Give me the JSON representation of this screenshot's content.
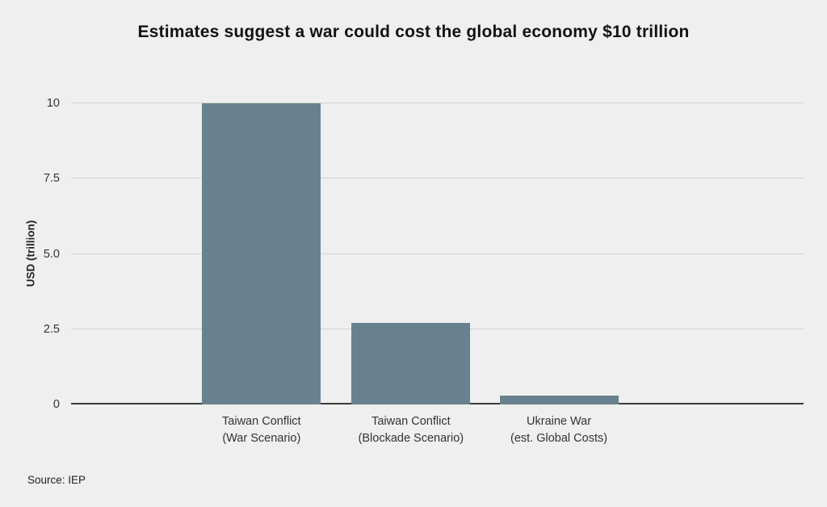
{
  "page": {
    "background": "#efefef"
  },
  "chart_data": {
    "type": "bar",
    "title": "Estimates suggest a war could cost the global economy $10 trillion",
    "categories": [
      "Taiwan Conflict\n(War Scenario)",
      "Taiwan Conflict\n(Blockade Scenario)",
      "Ukraine War\n(est. Global Costs)"
    ],
    "values": [
      10,
      2.7,
      0.3
    ],
    "xlabel": "",
    "ylabel": "USD (trillion)",
    "ylim": [
      0,
      10
    ],
    "yticks": [
      0,
      2.5,
      5.0,
      7.5,
      10
    ],
    "ytick_labels": [
      "0",
      "2.5",
      "5.0",
      "7.5",
      "10"
    ],
    "grid": "horizontal",
    "legend": "none",
    "bar_color": "#67828e",
    "gridline_color": "#d2d2d2",
    "zero_line_color": "#3c3c3c",
    "bar_centers_pct": [
      26.0,
      46.4,
      66.6
    ],
    "bar_width_pct": 16.2
  },
  "source": "Source: IEP"
}
